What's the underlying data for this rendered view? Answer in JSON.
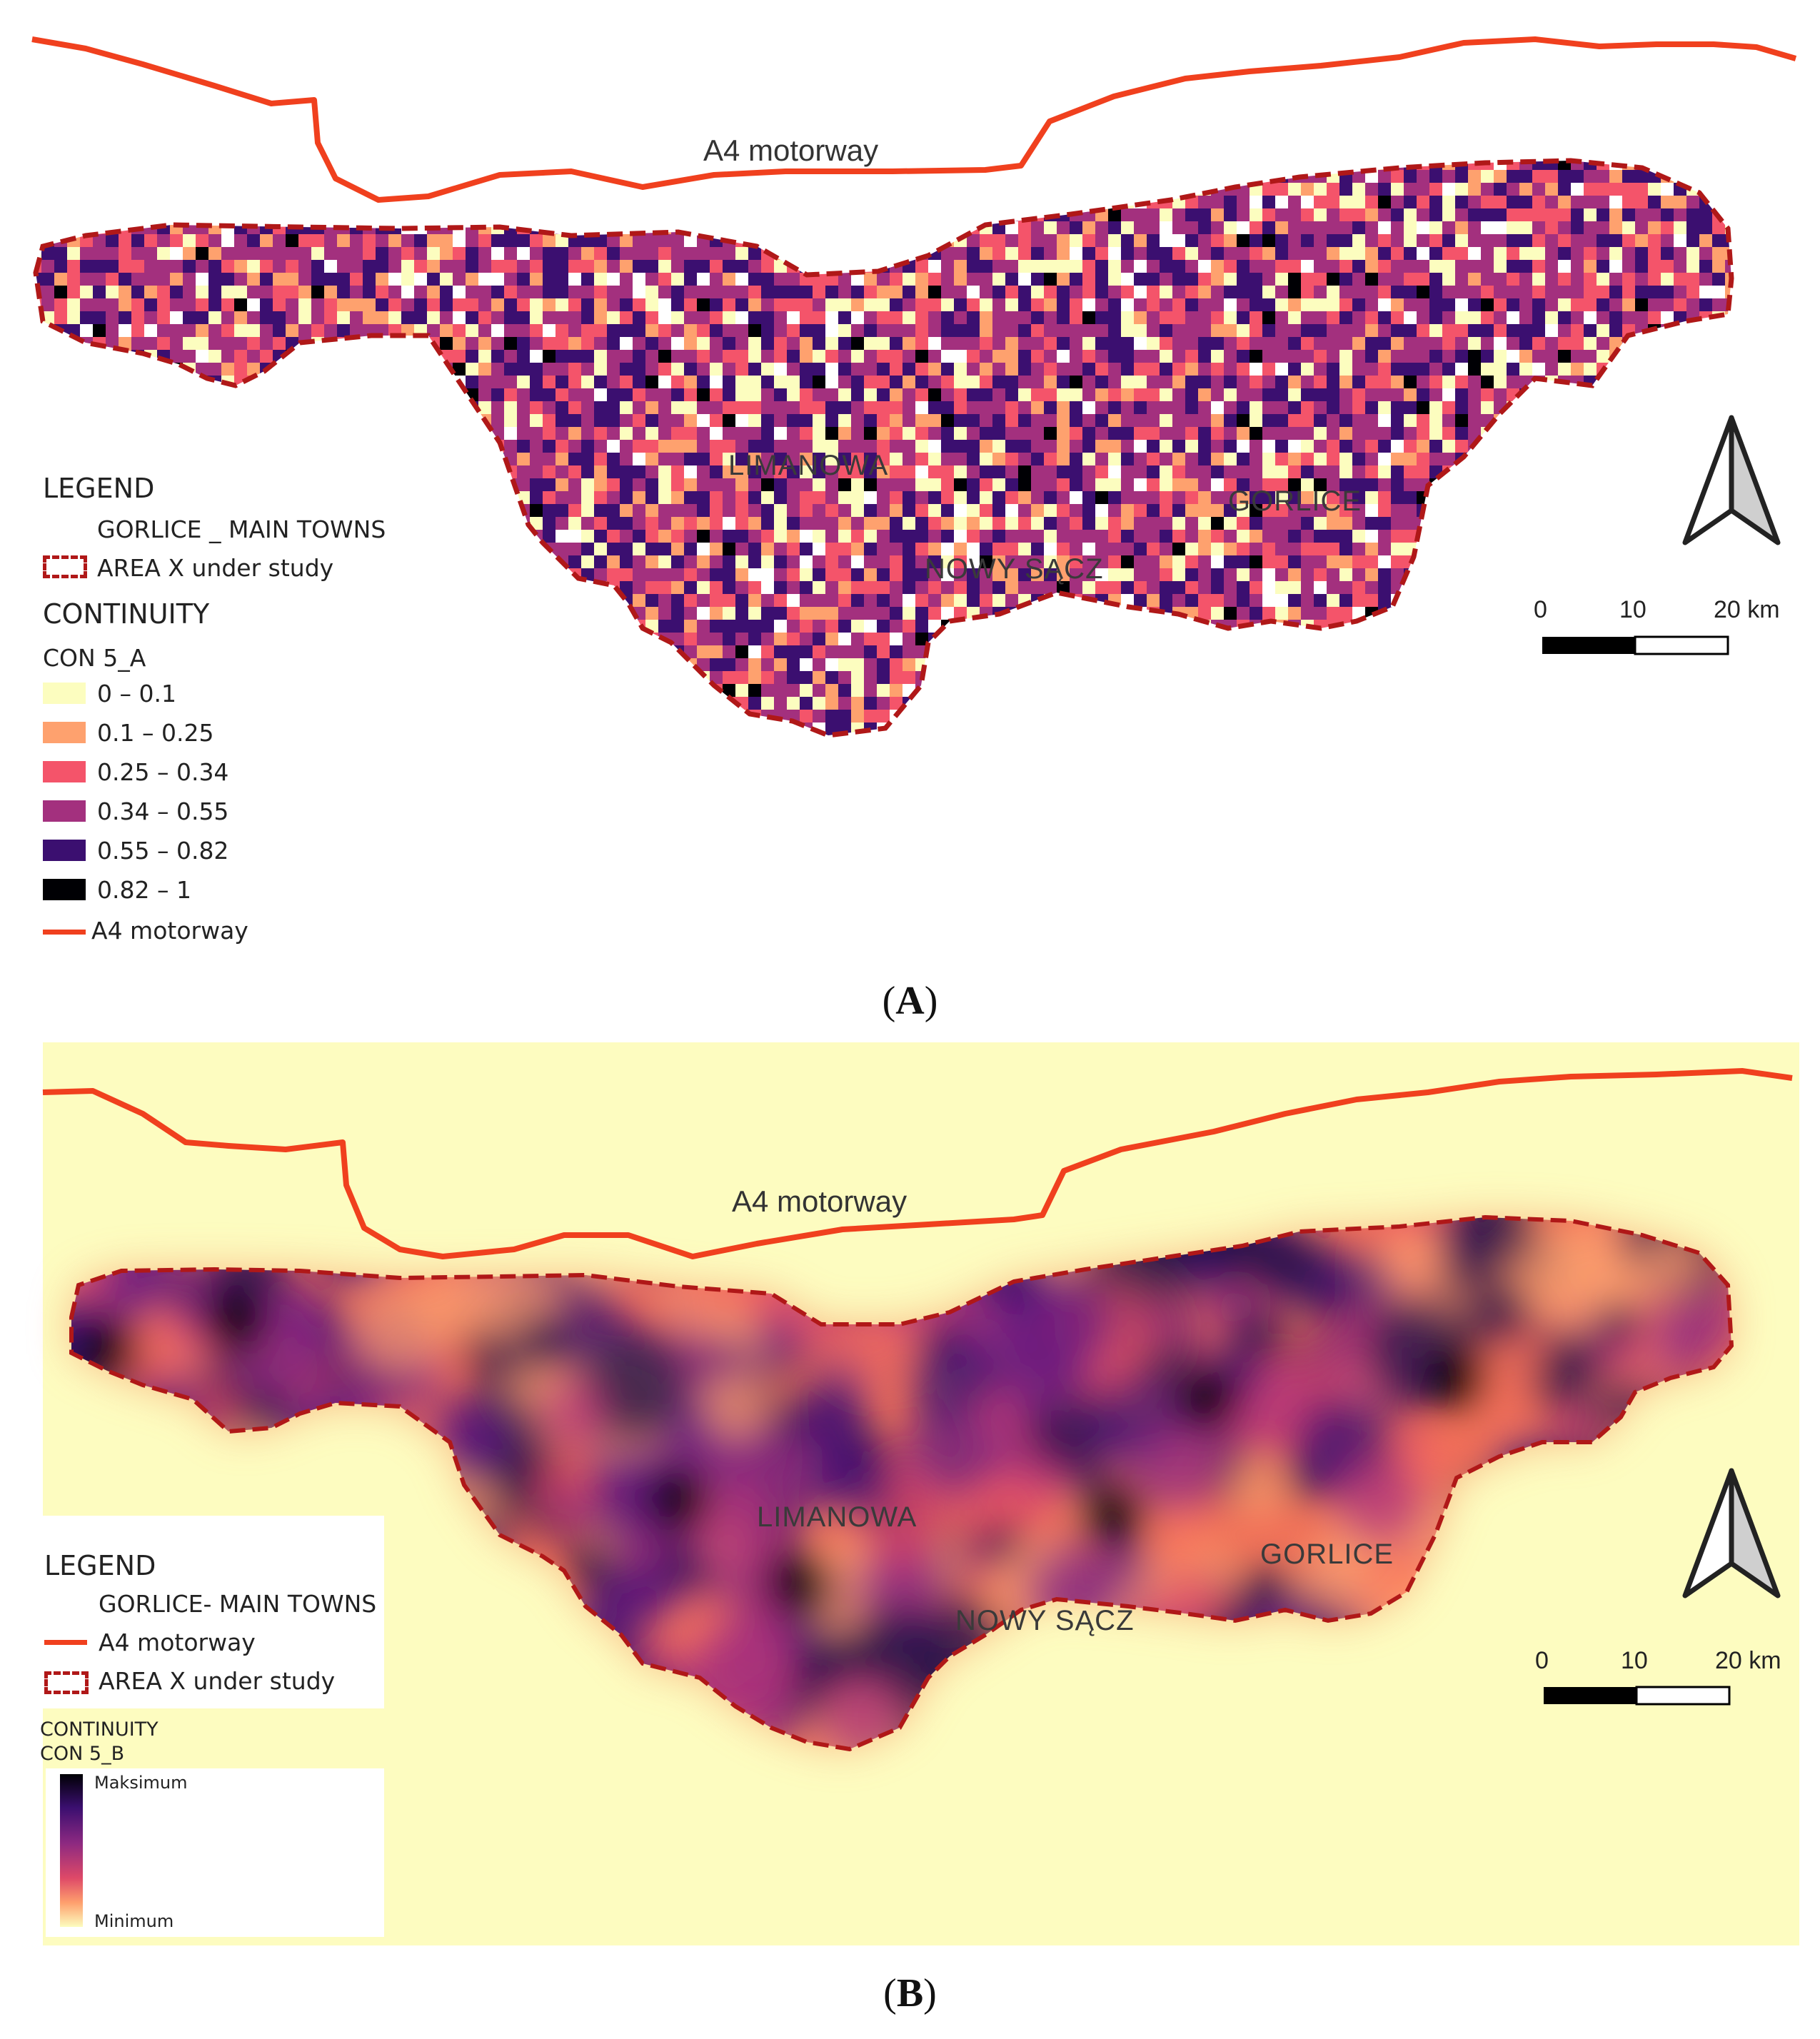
{
  "panel_a": {
    "caption_letter": "A",
    "motorway_label": "A4 motorway",
    "towns": [
      "LIMANOWA",
      "NOWY SĄCZ",
      "GORLICE"
    ],
    "scale": {
      "ticks": [
        "0",
        "10",
        "20 km"
      ]
    },
    "legend": {
      "title": "LEGEND",
      "towns_entry": "GORLICE _ MAIN TOWNS",
      "area_entry": "AREA  X under study",
      "continuity_title": "CONTINUITY",
      "layer_name": "CON 5_A",
      "classes": [
        {
          "label": "0 – 0.1",
          "color": "#fcfdbf"
        },
        {
          "label": "0.1 – 0.25",
          "color": "#fea16e"
        },
        {
          "label": "0.25 – 0.34",
          "color": "#f4546a"
        },
        {
          "label": "0.34 – 0.55",
          "color": "#a3307e"
        },
        {
          "label": "0.55 – 0.82",
          "color": "#3b0f70"
        },
        {
          "label": "0.82 – 1",
          "color": "#000004"
        }
      ],
      "motorway_entry": "A4 motorway"
    }
  },
  "panel_b": {
    "caption_letter": "B",
    "motorway_label": "A4 motorway",
    "towns": [
      "LIMANOWA",
      "NOWY SĄCZ",
      "GORLICE"
    ],
    "scale": {
      "ticks": [
        "0",
        "10",
        "20 km"
      ]
    },
    "legend": {
      "title": "LEGEND",
      "towns_entry": "GORLICE- MAIN TOWNS",
      "motorway_entry": "A4 motorway",
      "area_entry": "AREA X under study",
      "continuity_title": "CONTINUITY",
      "layer_name": "CON 5_B",
      "ramp_max": "Maksimum",
      "ramp_min": "Minimum"
    }
  },
  "colors": {
    "motorway": "#f0401e",
    "boundary": "#b01818",
    "background_b": "#fdfcc0"
  }
}
